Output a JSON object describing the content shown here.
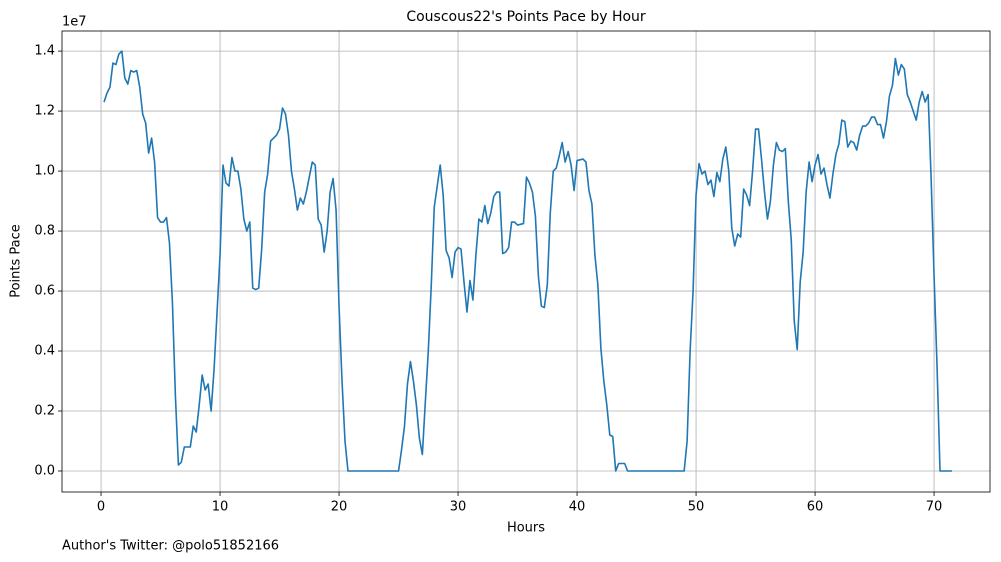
{
  "chart_data": {
    "type": "line",
    "title": "Couscous22's Points Pace by Hour",
    "xlabel": "Hours",
    "ylabel": "Points Pace",
    "y_offset_label": "1e7",
    "annotation": "Author's Twitter: @polo51852166",
    "grid": true,
    "xlim": [
      -3.28,
      74.7
    ],
    "ylim": [
      -0.07,
      1.467
    ],
    "xticks": [
      0,
      10,
      20,
      30,
      40,
      50,
      60,
      70
    ],
    "yticks": [
      {
        "value": 0,
        "label": "0.0"
      },
      0.2,
      0.4,
      0.6,
      0.8,
      {
        "value": 1,
        "label": "1.0"
      },
      1.2,
      1.4
    ],
    "x": [
      0.25,
      0.5,
      0.75,
      1.0,
      1.25,
      1.5,
      1.75,
      2.0,
      2.25,
      2.5,
      2.75,
      3.0,
      3.25,
      3.5,
      3.75,
      4.0,
      4.25,
      4.5,
      4.75,
      5.0,
      5.25,
      5.5,
      5.75,
      6.0,
      6.25,
      6.5,
      6.75,
      7.0,
      7.5,
      7.75,
      8.0,
      8.25,
      8.5,
      8.75,
      9.0,
      9.25,
      9.5,
      9.75,
      10.0,
      10.25,
      10.5,
      10.75,
      11.0,
      11.25,
      11.5,
      11.75,
      12.0,
      12.25,
      12.5,
      12.75,
      13.0,
      13.25,
      13.5,
      13.75,
      14.0,
      14.25,
      14.75,
      15.0,
      15.25,
      15.5,
      15.75,
      16.0,
      16.25,
      16.5,
      16.75,
      17.0,
      17.25,
      17.5,
      17.75,
      18.0,
      18.25,
      18.5,
      18.75,
      19.0,
      19.25,
      19.5,
      19.75,
      20.0,
      20.25,
      20.5,
      20.75,
      25.0,
      25.25,
      25.5,
      25.75,
      26.0,
      26.25,
      26.5,
      26.75,
      27.0,
      27.25,
      27.5,
      27.75,
      28.0,
      28.25,
      28.5,
      28.75,
      29.0,
      29.25,
      29.5,
      29.75,
      30.0,
      30.25,
      30.5,
      30.75,
      31.0,
      31.25,
      31.5,
      31.75,
      32.0,
      32.25,
      32.5,
      32.75,
      33.0,
      33.25,
      33.5,
      33.75,
      34.0,
      34.25,
      34.5,
      34.75,
      35.0,
      35.5,
      35.75,
      36.0,
      36.25,
      36.5,
      36.75,
      37.0,
      37.25,
      37.5,
      37.75,
      38.0,
      38.25,
      38.5,
      38.75,
      39.0,
      39.25,
      39.5,
      39.75,
      40.0,
      40.5,
      40.75,
      41.0,
      41.25,
      41.5,
      41.75,
      42.0,
      42.25,
      42.5,
      42.75,
      43.0,
      43.25,
      43.5,
      44.0,
      44.25,
      49.0,
      49.25,
      49.5,
      49.75,
      50.0,
      50.25,
      50.5,
      50.75,
      51.0,
      51.25,
      51.5,
      51.75,
      52.0,
      52.25,
      52.5,
      52.75,
      53.0,
      53.25,
      53.5,
      53.75,
      54.0,
      54.25,
      54.5,
      54.75,
      55.0,
      55.25,
      55.5,
      55.75,
      56.0,
      56.25,
      56.5,
      56.75,
      57.0,
      57.25,
      57.5,
      57.75,
      58.0,
      58.25,
      58.5,
      58.75,
      59.0,
      59.25,
      59.5,
      59.75,
      60.0,
      60.25,
      60.5,
      60.75,
      61.0,
      61.25,
      61.5,
      61.75,
      62.0,
      62.25,
      62.5,
      62.75,
      63.0,
      63.25,
      63.5,
      63.75,
      64.0,
      64.25,
      64.5,
      64.75,
      65.0,
      65.25,
      65.5,
      65.75,
      66.0,
      66.25,
      66.5,
      66.75,
      67.0,
      67.25,
      67.5,
      67.75,
      68.0,
      68.25,
      68.5,
      68.75,
      69.0,
      69.25,
      69.5,
      69.75,
      70.0,
      70.25,
      70.5,
      71.5
    ],
    "series": [
      {
        "color": "#1f77b4",
        "values": [
          1.23,
          1.26,
          1.28,
          1.36,
          1.355,
          1.39,
          1.4,
          1.31,
          1.29,
          1.335,
          1.33,
          1.335,
          1.28,
          1.19,
          1.16,
          1.06,
          1.11,
          1.03,
          0.845,
          0.83,
          0.83,
          0.845,
          0.76,
          0.56,
          0.25,
          0.02,
          0.03,
          0.08,
          0.08,
          0.15,
          0.13,
          0.22,
          0.32,
          0.27,
          0.29,
          0.2,
          0.34,
          0.53,
          0.72,
          1.02,
          0.96,
          0.95,
          1.045,
          1.0,
          1.0,
          0.94,
          0.84,
          0.8,
          0.83,
          0.61,
          0.605,
          0.61,
          0.74,
          0.93,
          0.99,
          1.1,
          1.12,
          1.14,
          1.21,
          1.19,
          1.12,
          1.0,
          0.94,
          0.87,
          0.91,
          0.89,
          0.93,
          0.98,
          1.03,
          1.02,
          0.84,
          0.82,
          0.73,
          0.8,
          0.93,
          0.975,
          0.87,
          0.55,
          0.3,
          0.1,
          0.0,
          0.0,
          0.07,
          0.15,
          0.29,
          0.365,
          0.3,
          0.22,
          0.11,
          0.055,
          0.23,
          0.4,
          0.62,
          0.88,
          0.95,
          1.02,
          0.92,
          0.735,
          0.71,
          0.645,
          0.73,
          0.745,
          0.74,
          0.63,
          0.53,
          0.635,
          0.57,
          0.72,
          0.84,
          0.83,
          0.885,
          0.825,
          0.86,
          0.915,
          0.93,
          0.93,
          0.725,
          0.73,
          0.745,
          0.83,
          0.83,
          0.82,
          0.825,
          0.98,
          0.96,
          0.93,
          0.85,
          0.65,
          0.55,
          0.545,
          0.62,
          0.86,
          1.0,
          1.01,
          1.05,
          1.095,
          1.03,
          1.065,
          1.02,
          0.935,
          1.035,
          1.04,
          1.03,
          0.935,
          0.89,
          0.72,
          0.62,
          0.41,
          0.3,
          0.22,
          0.12,
          0.115,
          0.0,
          0.025,
          0.025,
          0.0,
          0.0,
          0.1,
          0.4,
          0.6,
          0.92,
          1.025,
          0.99,
          1.0,
          0.955,
          0.97,
          0.915,
          0.995,
          0.965,
          1.04,
          1.08,
          1.0,
          0.81,
          0.75,
          0.79,
          0.78,
          0.94,
          0.92,
          0.885,
          1.0,
          1.14,
          1.14,
          1.04,
          0.93,
          0.84,
          0.9,
          1.02,
          1.095,
          1.07,
          1.065,
          1.075,
          0.9,
          0.77,
          0.5,
          0.405,
          0.63,
          0.73,
          0.93,
          1.03,
          0.965,
          1.02,
          1.055,
          0.99,
          1.01,
          0.955,
          0.91,
          0.99,
          1.055,
          1.09,
          1.17,
          1.165,
          1.08,
          1.1,
          1.095,
          1.07,
          1.12,
          1.15,
          1.15,
          1.16,
          1.18,
          1.18,
          1.155,
          1.155,
          1.11,
          1.165,
          1.25,
          1.285,
          1.375,
          1.32,
          1.355,
          1.34,
          1.255,
          1.23,
          1.2,
          1.17,
          1.23,
          1.265,
          1.23,
          1.255,
          0.98,
          0.65,
          0.35,
          0.0,
          0.0
        ]
      }
    ]
  }
}
